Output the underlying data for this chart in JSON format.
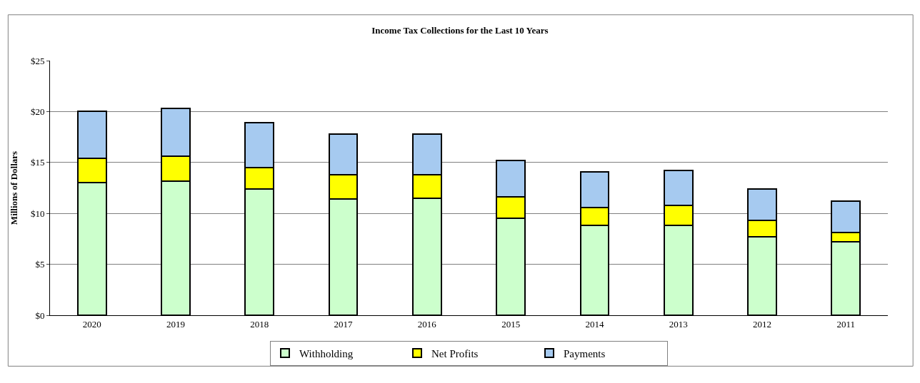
{
  "chart_data": {
    "type": "bar",
    "title": "Income Tax Collections for the Last 10 Years",
    "ylabel": "Millions of Dollars",
    "categories": [
      "2020",
      "2019",
      "2018",
      "2017",
      "2016",
      "2015",
      "2014",
      "2013",
      "2012",
      "2011"
    ],
    "stacked": true,
    "series": [
      {
        "name": "Withholding",
        "color": "#ccffcc",
        "values": [
          13.0,
          13.2,
          12.4,
          11.4,
          11.5,
          9.5,
          8.8,
          8.8,
          7.7,
          7.2
        ]
      },
      {
        "name": "Net Profits",
        "color": "#ffff00",
        "values": [
          2.4,
          2.4,
          2.1,
          2.4,
          2.3,
          2.1,
          1.8,
          2.0,
          1.6,
          0.9
        ]
      },
      {
        "name": "Payments",
        "color": "#a6caf0",
        "values": [
          4.6,
          4.7,
          4.4,
          4.0,
          4.0,
          3.6,
          3.5,
          3.4,
          3.1,
          3.1
        ]
      }
    ],
    "ylim": [
      0,
      25
    ],
    "yticks": [
      {
        "value": 0,
        "label": "$0"
      },
      {
        "value": 5,
        "label": "$5"
      },
      {
        "value": 10,
        "label": "$10"
      },
      {
        "value": 15,
        "label": "$15"
      },
      {
        "value": 20,
        "label": "$20"
      },
      {
        "value": 25,
        "label": "$25"
      }
    ],
    "grid": "y",
    "legend": "bottom"
  }
}
